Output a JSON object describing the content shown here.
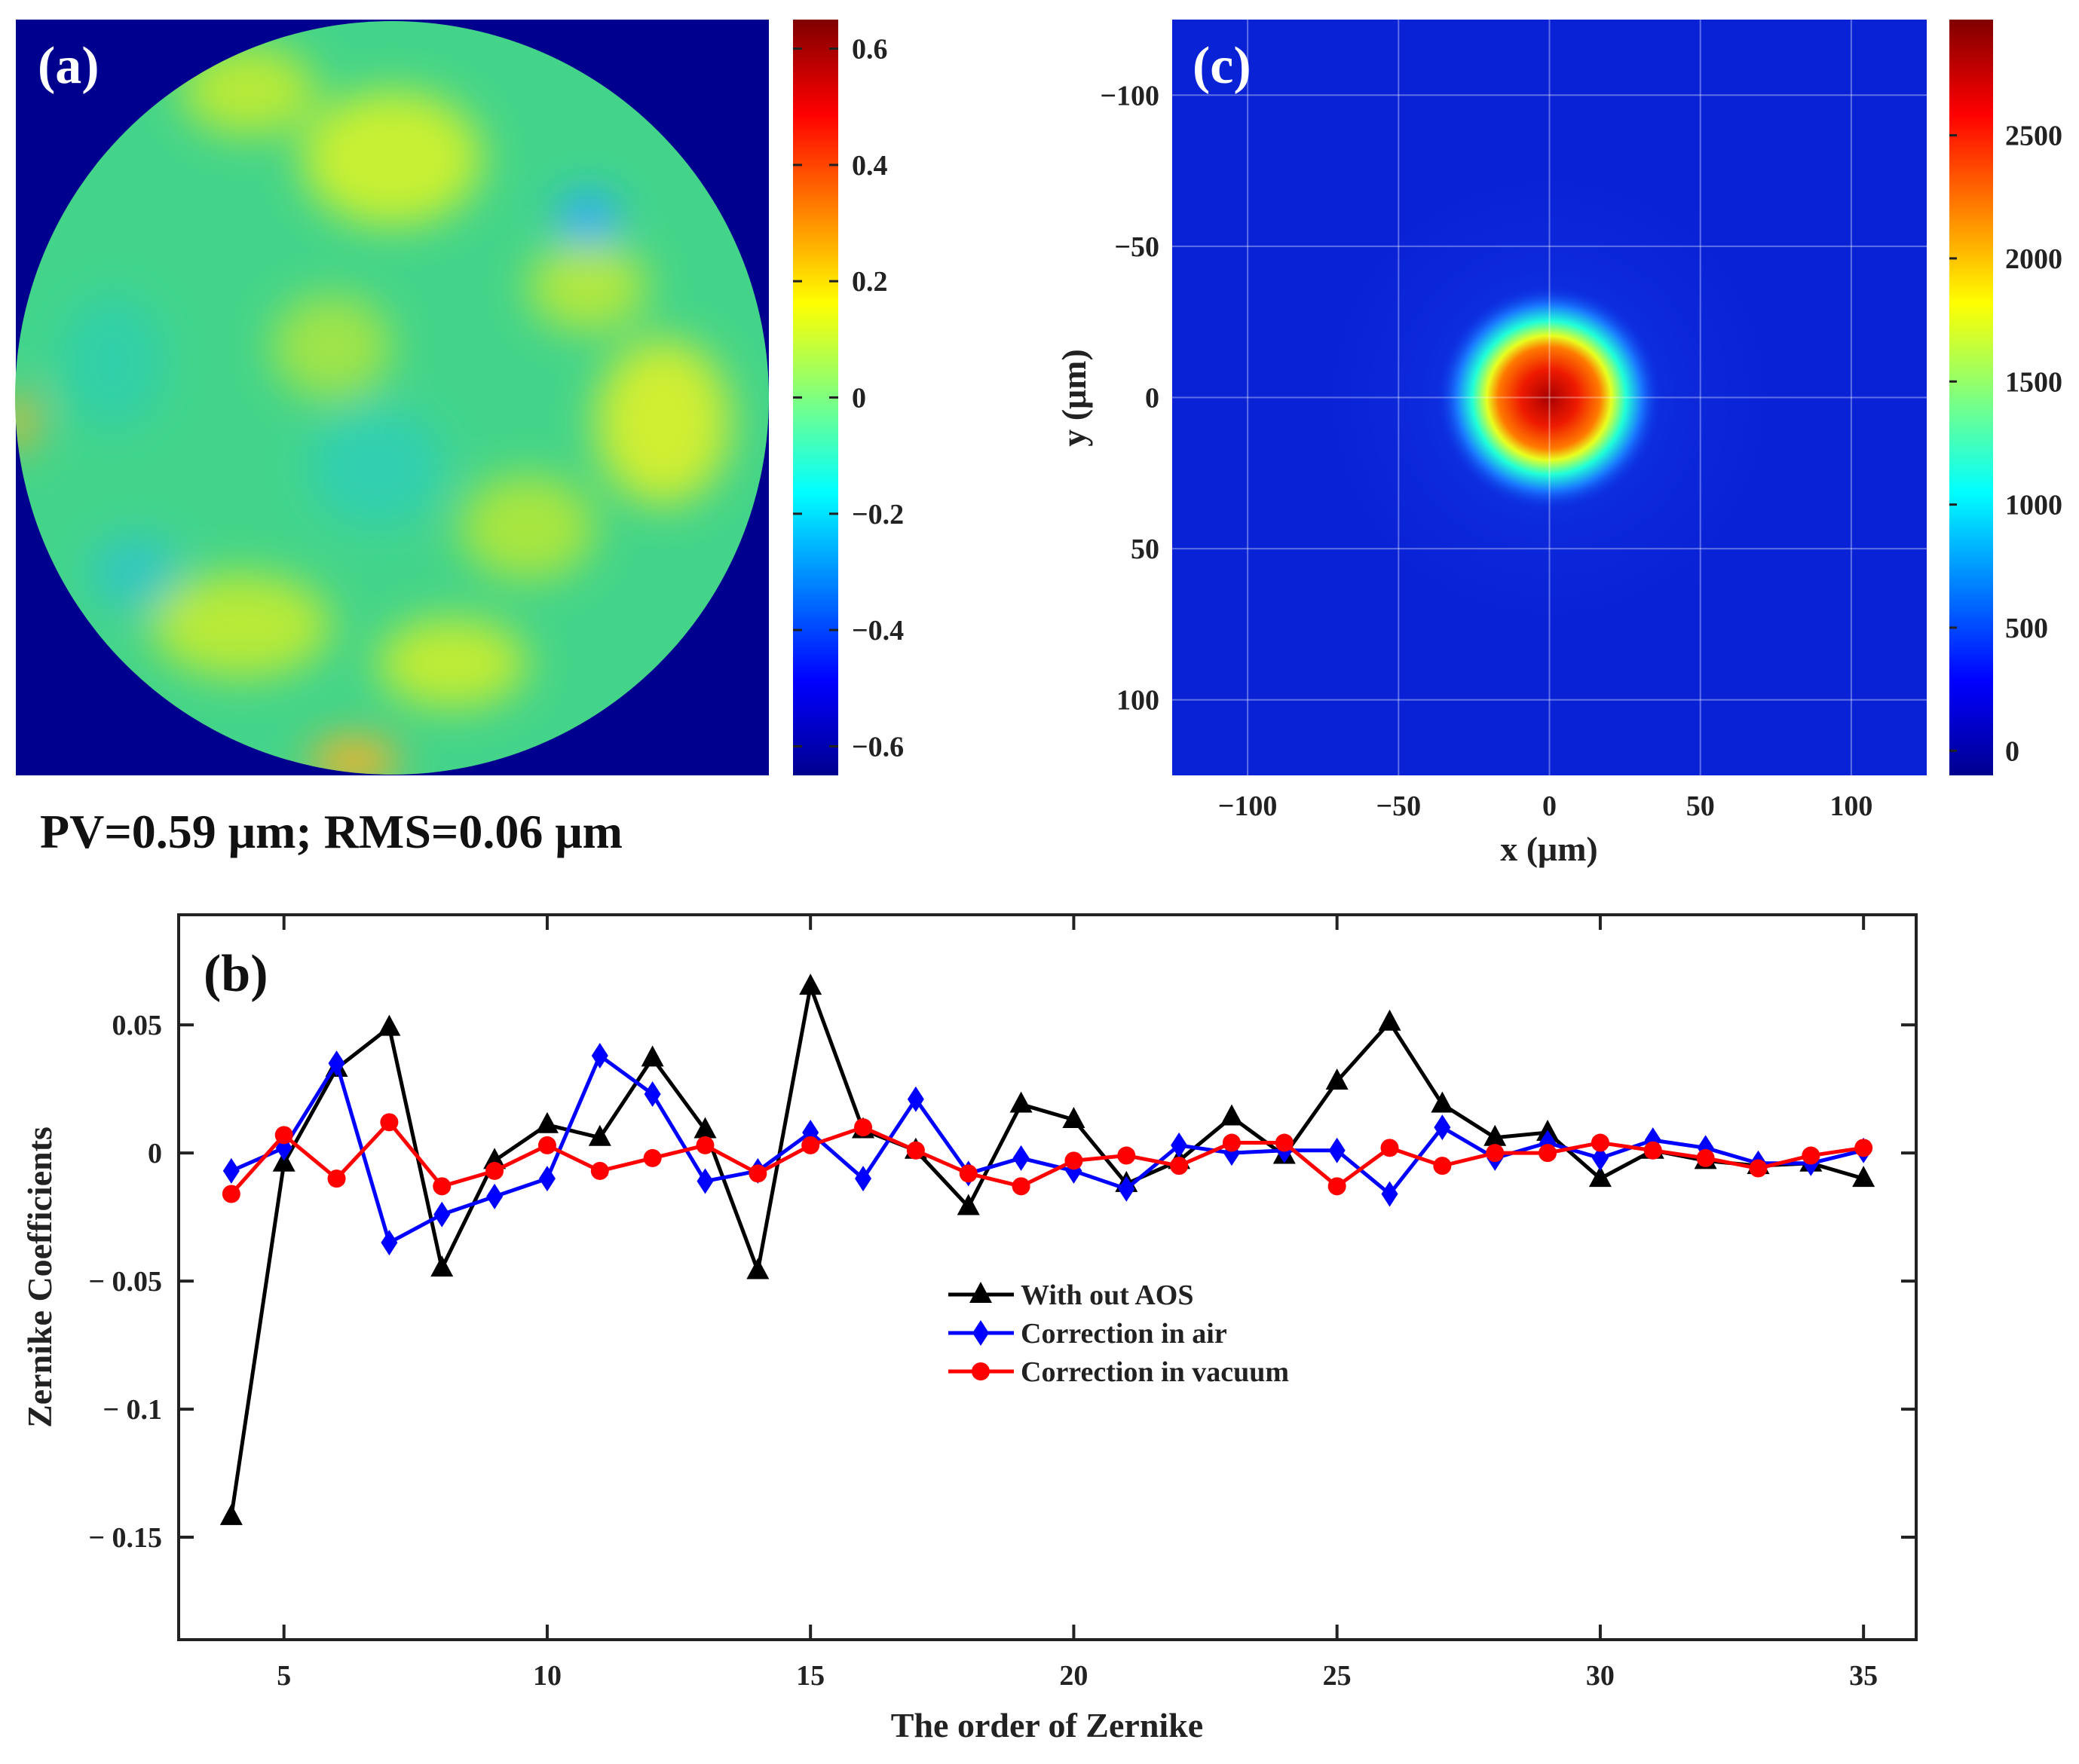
{
  "chart_data": [
    {
      "panel": "(a)",
      "type": "heatmap",
      "title": "",
      "caption": "PV=0.59 μm;   RMS=0.06 μm",
      "colorbar": {
        "range": [
          -0.65,
          0.65
        ],
        "ticks": [
          0.6,
          0.4,
          0.2,
          0,
          -0.2,
          -0.4,
          -0.6
        ],
        "tick_labels": [
          "0.6",
          "0.4",
          "0.2",
          "0",
          "−0.2",
          "−0.4",
          "−0.6"
        ]
      },
      "colors": {
        "background": "#00008f",
        "surface": "#3fd38a"
      }
    },
    {
      "panel": "(b)",
      "type": "line",
      "xlabel": "The order of Zernike",
      "ylabel": "Zernike Coefficients",
      "xlim": [
        3,
        36
      ],
      "ylim": [
        -0.19,
        0.093
      ],
      "xticks": [
        5,
        10,
        15,
        20,
        25,
        30,
        35
      ],
      "xtick_labels": [
        "5",
        "10",
        "15",
        "20",
        "25",
        "30",
        "35"
      ],
      "yticks": [
        0.05,
        0,
        -0.05,
        -0.1,
        -0.15
      ],
      "ytick_labels": [
        "0.05",
        "0",
        "− 0.05",
        "− 0.1",
        "− 0.15"
      ],
      "legend_position": "center",
      "x": [
        4,
        5,
        6,
        7,
        8,
        9,
        10,
        11,
        12,
        13,
        14,
        15,
        16,
        17,
        18,
        19,
        20,
        21,
        22,
        23,
        24,
        25,
        26,
        27,
        28,
        29,
        30,
        31,
        32,
        33,
        34,
        35
      ],
      "series": [
        {
          "name": "With out AOS",
          "color": "#000000",
          "marker": "triangle",
          "values": [
            -0.142,
            -0.004,
            0.033,
            0.049,
            -0.045,
            -0.003,
            0.011,
            0.006,
            0.037,
            0.009,
            -0.046,
            0.065,
            0.009,
            0.001,
            -0.021,
            0.019,
            0.013,
            -0.012,
            -0.003,
            0.014,
            -0.001,
            0.028,
            0.051,
            0.019,
            0.006,
            0.008,
            -0.01,
            0.001,
            -0.003,
            -0.005,
            -0.004,
            -0.01
          ]
        },
        {
          "name": "Correction in air",
          "color": "#0000ff",
          "marker": "diamond",
          "values": [
            -0.007,
            0.002,
            0.035,
            -0.035,
            -0.024,
            -0.017,
            -0.01,
            0.038,
            0.023,
            -0.011,
            -0.007,
            0.008,
            -0.01,
            0.021,
            -0.008,
            -0.002,
            -0.007,
            -0.014,
            0.003,
            0.0,
            0.001,
            0.001,
            -0.016,
            0.01,
            -0.002,
            0.004,
            -0.002,
            0.005,
            0.002,
            -0.004,
            -0.004,
            0.001
          ]
        },
        {
          "name": "Correction in vacuum",
          "color": "#ff0000",
          "marker": "circle",
          "values": [
            -0.016,
            0.007,
            -0.01,
            0.012,
            -0.013,
            -0.007,
            0.003,
            -0.007,
            -0.002,
            0.003,
            -0.008,
            0.003,
            0.01,
            0.001,
            -0.008,
            -0.013,
            -0.003,
            -0.001,
            -0.005,
            0.004,
            0.004,
            -0.013,
            0.002,
            -0.005,
            0.0,
            0.0,
            0.004,
            0.001,
            -0.002,
            -0.006,
            -0.001,
            0.002
          ]
        }
      ]
    },
    {
      "panel": "(c)",
      "type": "heatmap",
      "xlabel": "x (μm)",
      "ylabel": "y (μm)",
      "xlim": [
        -125,
        125
      ],
      "ylim": [
        125,
        -125
      ],
      "xticks": [
        -100,
        -50,
        0,
        50,
        100
      ],
      "xtick_labels": [
        "−100",
        "−50",
        "0",
        "50",
        "100"
      ],
      "yticks": [
        -100,
        -50,
        0,
        50,
        100
      ],
      "ytick_labels": [
        "−100",
        "−50",
        "0",
        "50",
        "100"
      ],
      "grid": true,
      "spot_center": [
        0,
        0
      ],
      "colorbar": {
        "range": [
          -100,
          2970
        ],
        "ticks": [
          2500,
          2000,
          1500,
          1000,
          500,
          0
        ],
        "tick_labels": [
          "2500",
          "2000",
          "1500",
          "1000",
          "500",
          "0"
        ]
      }
    }
  ]
}
